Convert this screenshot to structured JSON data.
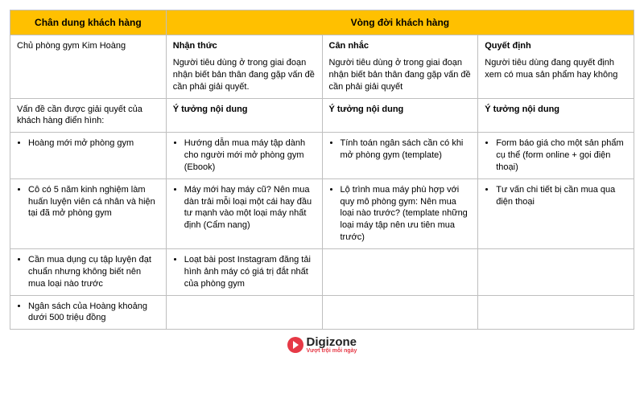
{
  "colors": {
    "header_bg": "#ffc000",
    "border": "#bfbfbf",
    "logo_accent": "#e63946",
    "text": "#000000"
  },
  "table": {
    "header_persona": "Chân dung khách hàng",
    "header_lifecycle": "Vòng đời khách hàng",
    "persona_name": "Chủ phòng gym Kim Hoàng",
    "stages": [
      {
        "title": "Nhận thức",
        "desc": "Người tiêu dùng ở trong giai đoạn nhận biết bản thân đang gặp vấn đề cần phải giải quyết."
      },
      {
        "title": "Cân nhắc",
        "desc": "Người tiêu dùng ở trong giai đoạn nhận biết bản thân đang gặp vấn đề cần phải giải quyết"
      },
      {
        "title": "Quyết định",
        "desc": "Người tiêu dùng đang quyết định xem có mua sản phẩm hay không"
      }
    ],
    "problem_label": "Vấn đề cần được giải quyết của khách hàng điển hình:",
    "idea_label": "Ý tưởng nội dung",
    "rows": [
      {
        "problem": "Hoàng mới mở phòng gym",
        "ideas": [
          "Hướng dẫn mua máy tập dành cho người mới mở phòng gym (Ebook)",
          "Tính toán ngân sách cần có khi mở phòng gym (template)",
          "Form báo giá cho một sản phẩm cụ thể (form online + gọi điện thoại)"
        ]
      },
      {
        "problem": "Cô có 5 năm kinh nghiệm làm huấn luyện viên cá nhân và hiện tại đã mở phòng gym",
        "ideas": [
          "Máy mới hay máy cũ? Nên mua dàn trải mỗi loại một cái hay đầu tư mạnh vào một loại máy nhất định (Cẩm nang)",
          "Lộ trình mua máy phù hợp với quy mô phòng gym: Nên mua loại nào trước? (template những loại máy tập nên ưu tiên mua trước)",
          "Tư vấn chi tiết bị cần mua qua điện thoại"
        ]
      },
      {
        "problem": "Cần mua dụng cụ tập luyện đạt chuẩn nhưng không biết nên mua loại nào trước",
        "ideas": [
          "Loạt bài post Instagram đăng tải hình ảnh máy có giá trị đắt nhất của phòng gym",
          "",
          ""
        ]
      },
      {
        "problem": "Ngân sách của Hoàng khoảng dưới 500 triệu đồng",
        "ideas": [
          "",
          "",
          ""
        ]
      }
    ]
  },
  "logo": {
    "name": "Digizone",
    "tagline": "Vượt trội mỗi ngày"
  }
}
